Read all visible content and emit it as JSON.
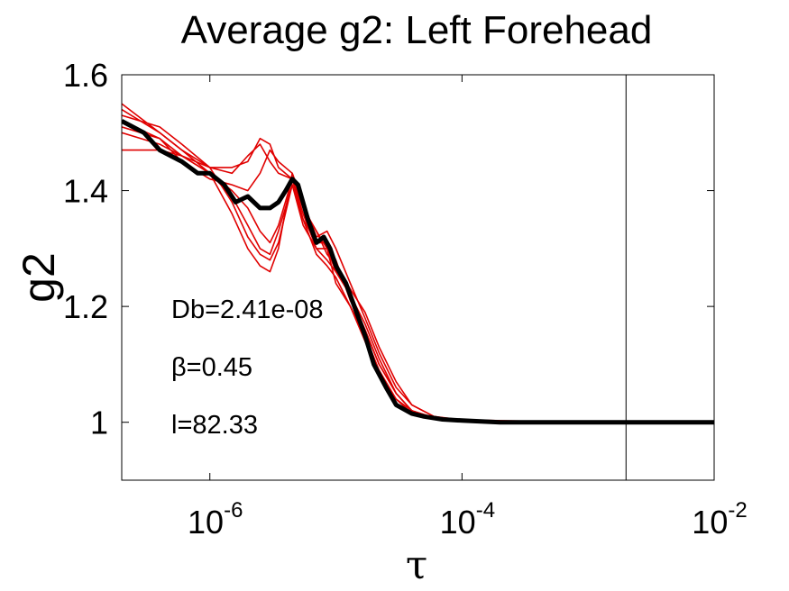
{
  "chart_data": {
    "type": "line",
    "title": "Average g2: Left Forehead",
    "xlabel": "τ",
    "ylabel": "g2",
    "xscale": "log",
    "xlim": [
      2e-07,
      0.01
    ],
    "ylim": [
      0.9,
      1.6
    ],
    "x_ticks": [
      {
        "value": 1e-06,
        "base": "10",
        "exponent": "-6"
      },
      {
        "value": 0.0001,
        "base": "10",
        "exponent": "-4"
      },
      {
        "value": 0.01,
        "base": "10",
        "exponent": "-2"
      }
    ],
    "y_ticks": [
      {
        "value": 1.6,
        "label": "1.6"
      },
      {
        "value": 1.4,
        "label": "1.4"
      },
      {
        "value": 1.2,
        "label": "1.2"
      },
      {
        "value": 1.0,
        "label": "1"
      }
    ],
    "vertical_line_x": 0.002,
    "annotations": [
      "Db=2.41e-08",
      "β=0.45",
      "l=82.33"
    ],
    "grid": false,
    "average_color": "#000000",
    "trial_color": "#e00000",
    "average": {
      "x": [
        2e-07,
        3e-07,
        4e-07,
        6e-07,
        8e-07,
        1e-06,
        1.3e-06,
        1.6e-06,
        2e-06,
        2.5e-06,
        3e-06,
        3.5e-06,
        4e-06,
        4.5e-06,
        5e-06,
        6e-06,
        7e-06,
        8e-06,
        9e-06,
        1e-05,
        1.2e-05,
        1.4e-05,
        1.7e-05,
        2e-05,
        2.5e-05,
        3e-05,
        4e-05,
        5e-05,
        7e-05,
        0.0001,
        0.0002,
        0.001,
        0.01
      ],
      "y": [
        1.52,
        1.5,
        1.47,
        1.45,
        1.43,
        1.43,
        1.41,
        1.38,
        1.39,
        1.37,
        1.37,
        1.38,
        1.4,
        1.42,
        1.41,
        1.35,
        1.31,
        1.32,
        1.3,
        1.27,
        1.24,
        1.2,
        1.15,
        1.1,
        1.06,
        1.03,
        1.015,
        1.01,
        1.005,
        1.003,
        1.0,
        1.0,
        1.0
      ]
    },
    "series": [
      {
        "x": [
          2e-07,
          4e-07,
          6e-07,
          1e-06,
          1.5e-06,
          2e-06,
          2.5e-06,
          3e-06,
          3.5e-06,
          4.5e-06,
          5.5e-06,
          7e-06,
          8.5e-06,
          1e-05,
          1.3e-05,
          1.7e-05,
          2.2e-05,
          3e-05,
          4e-05,
          6e-05,
          0.0001,
          0.001,
          0.01
        ],
        "y": [
          1.55,
          1.5,
          1.47,
          1.44,
          1.43,
          1.46,
          1.48,
          1.45,
          1.43,
          1.42,
          1.36,
          1.3,
          1.28,
          1.26,
          1.22,
          1.17,
          1.11,
          1.05,
          1.02,
          1.008,
          1.003,
          1.0,
          1.0
        ]
      },
      {
        "x": [
          2e-07,
          4e-07,
          6e-07,
          1e-06,
          1.5e-06,
          2e-06,
          2.5e-06,
          3e-06,
          3.5e-06,
          4.5e-06,
          5.5e-06,
          7e-06,
          8.5e-06,
          1e-05,
          1.3e-05,
          1.7e-05,
          2.2e-05,
          3e-05,
          4e-05,
          6e-05,
          0.0001,
          0.001,
          0.01
        ],
        "y": [
          1.52,
          1.49,
          1.46,
          1.43,
          1.36,
          1.3,
          1.27,
          1.26,
          1.3,
          1.43,
          1.38,
          1.32,
          1.33,
          1.3,
          1.24,
          1.18,
          1.12,
          1.06,
          1.03,
          1.01,
          1.003,
          1.0,
          1.0
        ]
      },
      {
        "x": [
          2e-07,
          4e-07,
          6e-07,
          1e-06,
          1.5e-06,
          2e-06,
          2.5e-06,
          3e-06,
          3.5e-06,
          4.5e-06,
          5.5e-06,
          7e-06,
          8.5e-06,
          1e-05,
          1.3e-05,
          1.7e-05,
          2.2e-05,
          3e-05,
          4e-05,
          6e-05,
          0.0001,
          0.001,
          0.01
        ],
        "y": [
          1.53,
          1.51,
          1.48,
          1.44,
          1.38,
          1.32,
          1.29,
          1.28,
          1.31,
          1.41,
          1.35,
          1.29,
          1.27,
          1.25,
          1.2,
          1.15,
          1.09,
          1.04,
          1.02,
          1.006,
          1.002,
          1.0,
          1.0
        ]
      },
      {
        "x": [
          2e-07,
          4e-07,
          6e-07,
          1e-06,
          1.5e-06,
          2e-06,
          2.5e-06,
          3e-06,
          3.5e-06,
          4.5e-06,
          5.5e-06,
          7e-06,
          8.5e-06,
          1e-05,
          1.3e-05,
          1.7e-05,
          2.2e-05,
          3e-05,
          4e-05,
          6e-05,
          0.0001,
          0.001,
          0.01
        ],
        "y": [
          1.51,
          1.49,
          1.45,
          1.42,
          1.41,
          1.4,
          1.43,
          1.47,
          1.45,
          1.43,
          1.37,
          1.33,
          1.29,
          1.27,
          1.23,
          1.19,
          1.13,
          1.07,
          1.03,
          1.01,
          1.004,
          1.0,
          1.0
        ]
      },
      {
        "x": [
          2e-07,
          4e-07,
          6e-07,
          1e-06,
          1.5e-06,
          2e-06,
          2.5e-06,
          3e-06,
          3.5e-06,
          4.5e-06,
          5.5e-06,
          7e-06,
          8.5e-06,
          1e-05,
          1.3e-05,
          1.7e-05,
          2.2e-05,
          3e-05,
          4e-05,
          6e-05,
          0.0001,
          0.001,
          0.01
        ],
        "y": [
          1.47,
          1.47,
          1.46,
          1.44,
          1.44,
          1.45,
          1.49,
          1.48,
          1.44,
          1.42,
          1.35,
          1.31,
          1.31,
          1.28,
          1.21,
          1.16,
          1.1,
          1.05,
          1.02,
          1.007,
          1.003,
          1.0,
          1.0
        ]
      },
      {
        "x": [
          2e-07,
          4e-07,
          6e-07,
          1e-06,
          1.5e-06,
          2e-06,
          2.5e-06,
          3e-06,
          3.5e-06,
          4.5e-06,
          5.5e-06,
          7e-06,
          8.5e-06,
          1e-05,
          1.3e-05,
          1.7e-05,
          2.2e-05,
          3e-05,
          4e-05,
          6e-05,
          0.0001,
          0.001,
          0.01
        ],
        "y": [
          1.54,
          1.5,
          1.47,
          1.43,
          1.4,
          1.37,
          1.33,
          1.31,
          1.34,
          1.42,
          1.37,
          1.33,
          1.3,
          1.26,
          1.22,
          1.16,
          1.1,
          1.05,
          1.02,
          1.008,
          1.003,
          1.0,
          1.0
        ]
      },
      {
        "x": [
          2e-07,
          4e-07,
          6e-07,
          1e-06,
          1.5e-06,
          2e-06,
          2.5e-06,
          3e-06,
          3.5e-06,
          4.5e-06,
          5.5e-06,
          7e-06,
          8.5e-06,
          1e-05,
          1.3e-05,
          1.7e-05,
          2.2e-05,
          3e-05,
          4e-05,
          6e-05,
          0.0001,
          0.001,
          0.01
        ],
        "y": [
          1.5,
          1.48,
          1.46,
          1.43,
          1.39,
          1.34,
          1.3,
          1.29,
          1.33,
          1.41,
          1.34,
          1.3,
          1.3,
          1.24,
          1.2,
          1.14,
          1.08,
          1.04,
          1.015,
          1.005,
          1.002,
          1.0,
          1.0
        ]
      }
    ]
  }
}
